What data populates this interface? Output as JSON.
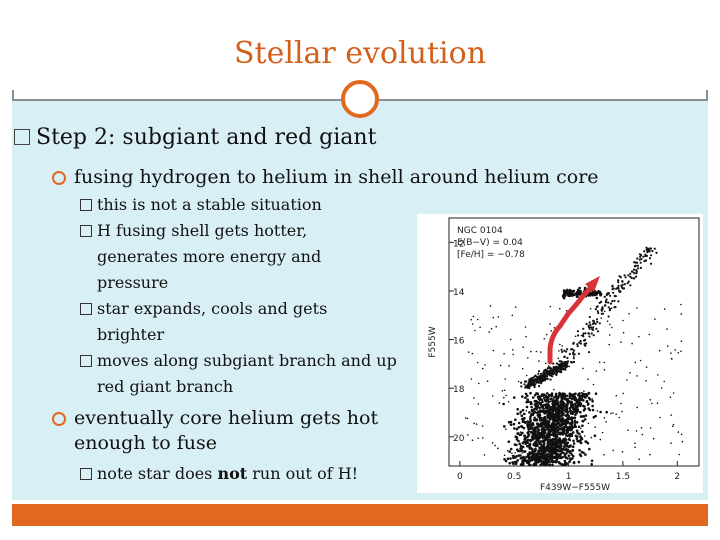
{
  "slide": {
    "title": "Stellar evolution",
    "heading": "Step 2: subgiant and red giant",
    "level1": [
      {
        "text": "fusing hydrogen to helium in shell around helium core"
      },
      {
        "text": "eventually core helium gets hot enough to fuse"
      }
    ],
    "level2_group1": [
      "this is not a stable situation",
      "H fusing shell gets hotter, generates more energy and pressure",
      "star expands, cools and gets brighter",
      "moves along subgiant branch and up red giant branch"
    ],
    "level2_group2": {
      "before": "note star does ",
      "bold": "not",
      "after": " run out of H!"
    }
  },
  "chart_data": {
    "type": "scatter",
    "annotation_lines": [
      "NGC 0104",
      "E(B−V) = 0.04",
      "[Fe/H] = −0.78"
    ],
    "xlabel": "F439W−F555W",
    "ylabel": "F555W",
    "x_ticks": [
      "0",
      "0.5",
      "1",
      "1.5",
      "2"
    ],
    "y_ticks": [
      "12",
      "14",
      "16",
      "18",
      "20"
    ],
    "xlim": [
      -0.1,
      2.2
    ],
    "ylim": [
      21.2,
      11.0
    ],
    "arrow_color": "#d9333a"
  },
  "colors": {
    "accent": "#e2681f",
    "title": "#d2601a",
    "panel": "#d9eff6"
  }
}
